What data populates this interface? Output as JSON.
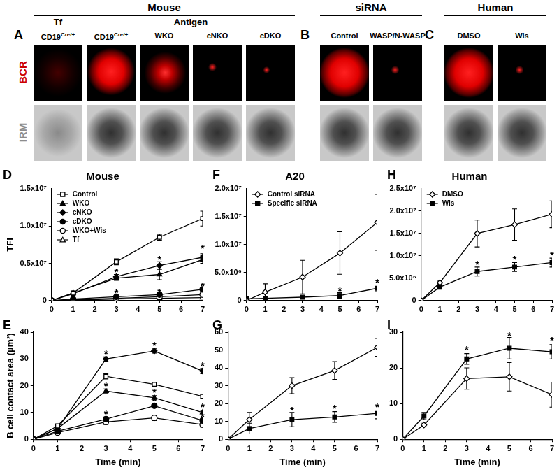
{
  "figure": {
    "row_labels": [
      {
        "text": "BCR",
        "color": "#cc0000"
      },
      {
        "text": "IRM",
        "color": "#8c8c8c"
      }
    ],
    "groups": [
      {
        "letter": "A",
        "title": "Mouse",
        "columns": [
          {
            "text": "CD19",
            "sup": "Cre/+",
            "subgroup": "Tf"
          },
          {
            "text": "CD19",
            "sup": "Cre/+",
            "subgroup": "Antigen"
          },
          {
            "text": "WKO",
            "subgroup": "Antigen"
          },
          {
            "text": "cNKO",
            "subgroup": "Antigen"
          },
          {
            "text": "cDKO",
            "subgroup": "Antigen"
          }
        ]
      },
      {
        "letter": "B",
        "title": "siRNA",
        "columns": [
          {
            "text": "Control"
          },
          {
            "text": "WASP/N-WASP"
          }
        ]
      },
      {
        "letter": "C",
        "title": "Human",
        "columns": [
          {
            "text": "DMSO"
          },
          {
            "text": "Wis"
          }
        ]
      }
    ]
  },
  "chart_data": [
    {
      "letter": "D",
      "type": "line",
      "title": "Mouse",
      "ylabel": "TFI",
      "x": [
        0,
        1,
        3,
        5,
        7
      ],
      "xlim": [
        0,
        7
      ],
      "xticks": [
        0,
        1,
        2,
        3,
        4,
        5,
        6,
        7
      ],
      "ylim": [
        0,
        15000000
      ],
      "yticks": [
        0,
        {
          "value": 5000000,
          "label": "0.5x10⁷"
        },
        {
          "value": 10000000,
          "label": "1.0x10⁷"
        },
        {
          "value": 15000000,
          "label": "1.5x10⁷"
        }
      ],
      "grid": false,
      "legend": "upper left",
      "series": [
        {
          "name": "Control",
          "color": "#000000",
          "marker": "square_open",
          "values": [
            0,
            1000000,
            5200000,
            8500000,
            11000000
          ],
          "errors": [
            0,
            300000,
            400000,
            400000,
            1000000
          ]
        },
        {
          "name": "WKO",
          "color": "#000000",
          "marker": "triangle",
          "values": [
            0,
            1000000,
            3000000,
            3500000,
            5500000
          ],
          "errors": [
            0,
            200000,
            300000,
            700000,
            500000
          ]
        },
        {
          "name": "cNKO",
          "color": "#000000",
          "marker": "diamond",
          "values": [
            0,
            900000,
            3200000,
            4700000,
            5800000
          ],
          "errors": [
            0,
            200000,
            300000,
            500000,
            500000
          ]
        },
        {
          "name": "cDKO",
          "color": "#000000",
          "marker": "circle",
          "values": [
            0,
            200000,
            500000,
            800000,
            1500000
          ],
          "errors": [
            0,
            100000,
            100000,
            200000,
            200000
          ]
        },
        {
          "name": "WKO+Wis",
          "color": "#000000",
          "marker": "circle_open",
          "values": [
            0,
            100000,
            300000,
            500000,
            800000
          ],
          "errors": [
            0,
            100000,
            100000,
            100000,
            200000
          ]
        },
        {
          "name": "Tf",
          "color": "#000000",
          "marker": "triangle_open",
          "values": [
            0,
            50000,
            200000,
            300000,
            400000
          ],
          "errors": [
            0,
            50000,
            100000,
            100000,
            100000
          ]
        }
      ],
      "annotations": [
        {
          "text": "*",
          "x": 3,
          "y": 4000000
        },
        {
          "text": "*",
          "x": 5,
          "y": 5700000
        },
        {
          "text": "*",
          "x": 7,
          "y": 7200000
        },
        {
          "text": "*",
          "x": 3,
          "y": 1200000
        },
        {
          "text": "*",
          "x": 5,
          "y": 1300000
        },
        {
          "text": "*",
          "x": 7,
          "y": 2200000
        }
      ]
    },
    {
      "letter": "E",
      "type": "line",
      "ylabel": "B cell contact area (µm²)",
      "xlabel": "Time (min)",
      "x": [
        0,
        1,
        3,
        5,
        7
      ],
      "xlim": [
        0,
        7
      ],
      "xticks": [
        0,
        1,
        2,
        3,
        4,
        5,
        6,
        7
      ],
      "ylim": [
        0,
        40
      ],
      "yticks": [
        0,
        10,
        20,
        30,
        40
      ],
      "grid": false,
      "series": [
        {
          "color": "#000000",
          "marker": "square_open",
          "values": [
            0,
            5,
            23.5,
            20.5,
            16
          ],
          "errors": [
            0,
            0.5,
            1,
            0.7,
            0.8
          ]
        },
        {
          "color": "#000000",
          "marker": "triangle",
          "values": [
            0,
            4,
            18,
            15.5,
            10
          ],
          "errors": [
            0,
            0.5,
            0.8,
            0.8,
            0.8
          ]
        },
        {
          "color": "#000000",
          "marker": "diamond",
          "values": [
            0,
            4,
            30,
            33,
            25.5
          ],
          "errors": [
            0,
            0.5,
            0.8,
            0.8,
            1
          ]
        },
        {
          "color": "#000000",
          "marker": "circle",
          "values": [
            0,
            3,
            7.5,
            12.5,
            7
          ],
          "errors": [
            0,
            0.5,
            0.8,
            0.8,
            0.8
          ]
        },
        {
          "color": "#000000",
          "marker": "circle_open",
          "values": [
            0,
            2.5,
            6.5,
            8,
            5.5
          ],
          "errors": [
            0,
            0.5,
            1,
            1,
            1
          ]
        }
      ],
      "annotations": [
        {
          "text": "*",
          "x": 3,
          "y": 32.5
        },
        {
          "text": "*",
          "x": 5,
          "y": 35.5
        },
        {
          "text": "*",
          "x": 7,
          "y": 28
        },
        {
          "text": "*",
          "x": 3,
          "y": 20.5
        },
        {
          "text": "*",
          "x": 5,
          "y": 18
        },
        {
          "text": "*",
          "x": 7,
          "y": 12.5
        },
        {
          "text": "*",
          "x": 3,
          "y": 10
        },
        {
          "text": "*",
          "x": 5,
          "y": 15
        },
        {
          "text": "*",
          "x": 7,
          "y": 9
        }
      ]
    },
    {
      "letter": "F",
      "type": "line",
      "title": "A20",
      "x": [
        0,
        1,
        3,
        5,
        7
      ],
      "xlim": [
        0,
        7
      ],
      "xticks": [
        0,
        1,
        2,
        3,
        4,
        5,
        6,
        7
      ],
      "ylim": [
        0,
        20000000
      ],
      "yticks": [
        0,
        {
          "value": 5000000,
          "label": "5.0x10⁶"
        },
        {
          "value": 10000000,
          "label": "1.0x10⁷"
        },
        {
          "value": 15000000,
          "label": "1.5x10⁷"
        },
        {
          "value": 20000000,
          "label": "2.0x10⁷"
        }
      ],
      "grid": false,
      "legend": "upper left",
      "series": [
        {
          "name": "Control siRNA",
          "color": "#000000",
          "marker": "diamond_open",
          "values": [
            0,
            1500000,
            4200000,
            8500000,
            14000000
          ],
          "errors": [
            0,
            1500000,
            3000000,
            3800000,
            5000000
          ]
        },
        {
          "name": "Specific siRNA",
          "color": "#000000",
          "marker": "square",
          "values": [
            300000,
            400000,
            600000,
            900000,
            2200000
          ],
          "errors": [
            0,
            300000,
            200000,
            500000,
            600000
          ]
        }
      ],
      "annotations": [
        {
          "text": "*",
          "x": 5,
          "y": 2000000
        },
        {
          "text": "*",
          "x": 7,
          "y": 3500000
        }
      ]
    },
    {
      "letter": "G",
      "type": "line",
      "xlabel": "Time (min)",
      "x": [
        0,
        1,
        3,
        5,
        7
      ],
      "xlim": [
        0,
        7
      ],
      "xticks": [
        0,
        1,
        2,
        3,
        4,
        5,
        6,
        7
      ],
      "ylim": [
        0,
        60
      ],
      "yticks": [
        0,
        10,
        20,
        30,
        40,
        50,
        60
      ],
      "grid": false,
      "series": [
        {
          "color": "#000000",
          "marker": "diamond_open",
          "values": [
            0,
            11,
            30,
            38.5,
            51.5
          ],
          "errors": [
            0,
            4,
            4.5,
            5,
            5
          ]
        },
        {
          "color": "#000000",
          "marker": "square",
          "values": [
            0,
            6,
            11,
            12.5,
            14.5
          ],
          "errors": [
            0,
            3,
            4,
            3,
            3
          ]
        }
      ],
      "annotations": [
        {
          "text": "*",
          "x": 3,
          "y": 17
        },
        {
          "text": "*",
          "x": 5,
          "y": 18
        },
        {
          "text": "*",
          "x": 7,
          "y": 19
        }
      ]
    },
    {
      "letter": "H",
      "type": "line",
      "title": "Human",
      "x": [
        0,
        1,
        3,
        5,
        7
      ],
      "xlim": [
        0,
        7
      ],
      "xticks": [
        0,
        1,
        2,
        3,
        4,
        5,
        6,
        7
      ],
      "ylim": [
        0,
        25000000
      ],
      "yticks": [
        0,
        {
          "value": 5000000,
          "label": "5.0x10⁶"
        },
        {
          "value": 10000000,
          "label": "1.0x10⁷"
        },
        {
          "value": 15000000,
          "label": "1.5x10⁷"
        },
        {
          "value": 20000000,
          "label": "2.0x10⁷"
        },
        {
          "value": 25000000,
          "label": "2.5x10⁷"
        }
      ],
      "grid": false,
      "legend": "upper left",
      "series": [
        {
          "name": "DMSO",
          "color": "#000000",
          "marker": "diamond_open",
          "values": [
            0,
            4000000,
            15000000,
            17000000,
            19300000
          ],
          "errors": [
            0,
            500000,
            3000000,
            3500000,
            3000000
          ]
        },
        {
          "name": "Wis",
          "color": "#000000",
          "marker": "square",
          "values": [
            0,
            3000000,
            6500000,
            7500000,
            8500000
          ],
          "errors": [
            0,
            500000,
            1000000,
            1000000,
            1000000
          ]
        }
      ],
      "annotations": [
        {
          "text": "*",
          "x": 3,
          "y": 8500000
        },
        {
          "text": "*",
          "x": 5,
          "y": 9500000
        },
        {
          "text": "*",
          "x": 7,
          "y": 10500000
        }
      ]
    },
    {
      "letter": "I",
      "type": "line",
      "xlabel": "Time (min)",
      "x": [
        0,
        1,
        3,
        5,
        7
      ],
      "xlim": [
        0,
        7
      ],
      "xticks": [
        0,
        1,
        2,
        3,
        4,
        5,
        6,
        7
      ],
      "ylim": [
        0,
        30
      ],
      "yticks": [
        0,
        10,
        20,
        30
      ],
      "grid": false,
      "series": [
        {
          "color": "#000000",
          "marker": "diamond_open",
          "values": [
            0,
            4,
            17,
            17.5,
            12.5
          ],
          "errors": [
            0,
            0.5,
            3,
            4,
            3.5
          ]
        },
        {
          "color": "#000000",
          "marker": "square",
          "values": [
            0,
            6.5,
            22.5,
            25.5,
            24.5
          ],
          "errors": [
            0,
            1,
            1.5,
            3,
            2
          ]
        }
      ],
      "annotations": [
        {
          "text": "*",
          "x": 3,
          "y": 25.5
        },
        {
          "text": "*",
          "x": 5,
          "y": 29.5
        },
        {
          "text": "*",
          "x": 7,
          "y": 28
        }
      ]
    }
  ]
}
